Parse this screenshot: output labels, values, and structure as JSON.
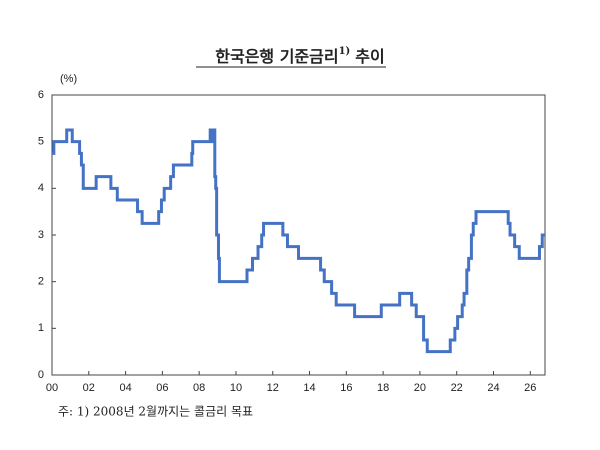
{
  "chart_data": {
    "type": "line",
    "step": "post",
    "title": "한국은행 기준금리",
    "title_superscript": "1)",
    "title_suffix": "추이",
    "y_unit_label": "(%)",
    "footnote": "주: 1) 2008년 2월까지는 콜금리 목표",
    "color": "#4472c4",
    "grid": false,
    "xlim": [
      2000,
      2026.8
    ],
    "ylim": [
      0,
      6
    ],
    "xticks": [
      {
        "value": 2000,
        "label": "00"
      },
      {
        "value": 2002,
        "label": "02"
      },
      {
        "value": 2004,
        "label": "04"
      },
      {
        "value": 2006,
        "label": "06"
      },
      {
        "value": 2008,
        "label": "08"
      },
      {
        "value": 2010,
        "label": "10"
      },
      {
        "value": 2012,
        "label": "12"
      },
      {
        "value": 2014,
        "label": "14"
      },
      {
        "value": 2016,
        "label": "16"
      },
      {
        "value": 2018,
        "label": "18"
      },
      {
        "value": 2020,
        "label": "20"
      },
      {
        "value": 2022,
        "label": "22"
      },
      {
        "value": 2024,
        "label": "24"
      },
      {
        "value": 2026,
        "label": "26"
      }
    ],
    "yticks": [
      0,
      1,
      2,
      3,
      4,
      5,
      6
    ],
    "x": [
      2000.0,
      2000.1,
      2000.8,
      2001.1,
      2001.5,
      2001.6,
      2001.7,
      2002.4,
      2003.2,
      2003.55,
      2004.65,
      2004.9,
      2005.8,
      2005.95,
      2006.1,
      2006.45,
      2006.6,
      2007.6,
      2007.65,
      2008.6,
      2008.75,
      2008.8,
      2008.85,
      2008.9,
      2008.95,
      2009.05,
      2009.1,
      2010.6,
      2010.9,
      2011.2,
      2011.4,
      2011.5,
      2012.55,
      2012.8,
      2013.4,
      2014.6,
      2014.8,
      2015.2,
      2015.45,
      2016.45,
      2017.9,
      2018.9,
      2019.55,
      2019.8,
      2020.2,
      2020.4,
      2021.65,
      2021.9,
      2022.05,
      2022.3,
      2022.4,
      2022.55,
      2022.65,
      2022.8,
      2022.9,
      2023.05,
      2024.8,
      2024.9,
      2025.15,
      2025.4,
      2026.5,
      2026.65,
      2026.8
    ],
    "values": [
      4.75,
      5.0,
      5.25,
      5.0,
      4.75,
      4.5,
      4.0,
      4.25,
      4.0,
      3.75,
      3.5,
      3.25,
      3.5,
      3.75,
      4.0,
      4.25,
      4.5,
      4.75,
      5.0,
      5.25,
      5.0,
      5.25,
      4.25,
      4.0,
      3.0,
      2.5,
      2.0,
      2.25,
      2.5,
      2.75,
      3.0,
      3.25,
      3.0,
      2.75,
      2.5,
      2.25,
      2.0,
      1.75,
      1.5,
      1.25,
      1.5,
      1.75,
      1.5,
      1.25,
      0.75,
      0.5,
      0.75,
      1.0,
      1.25,
      1.5,
      1.75,
      2.25,
      2.5,
      3.0,
      3.25,
      3.5,
      3.25,
      3.0,
      2.75,
      2.5,
      2.75,
      3.0,
      3.0
    ]
  }
}
